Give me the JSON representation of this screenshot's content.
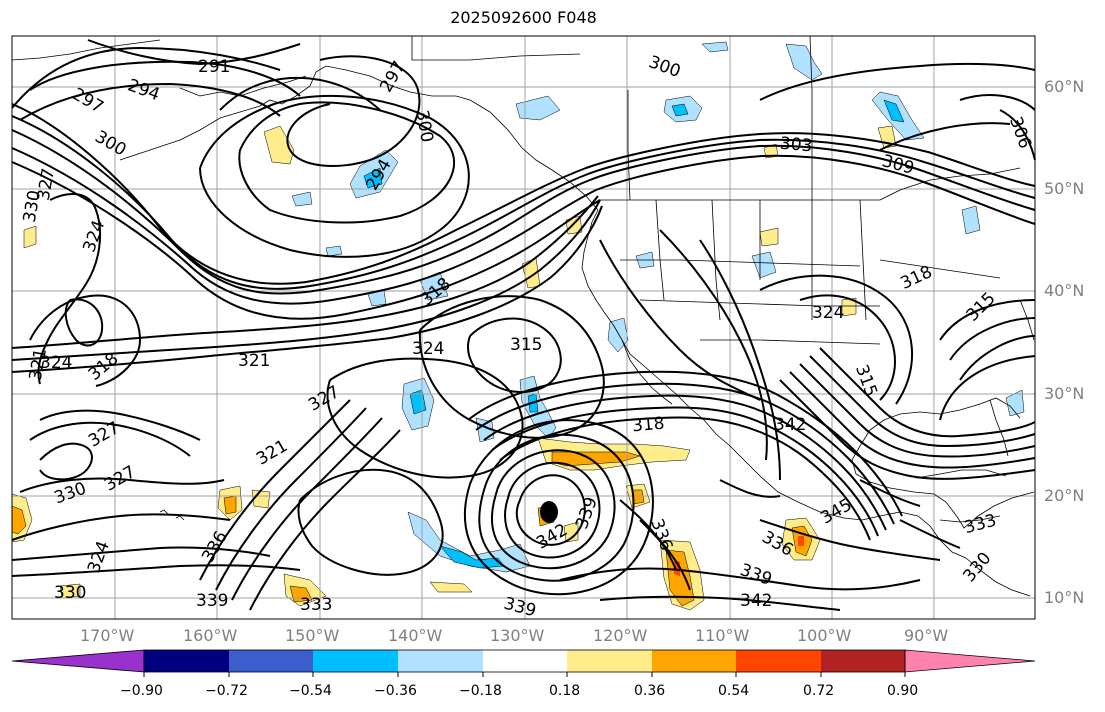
{
  "title": "2025092600 F048",
  "longitude_labels": [
    "170°W",
    "160°W",
    "150°W",
    "140°W",
    "130°W",
    "120°W",
    "110°W",
    "100°W",
    "90°W"
  ],
  "latitude_labels": [
    "60°N",
    "50°N",
    "40°N",
    "30°N",
    "20°N",
    "10°N"
  ],
  "colorbar": {
    "tick_labels": [
      "−0.90",
      "−0.72",
      "−0.54",
      "−0.36",
      "−0.18",
      "0.18",
      "0.36",
      "0.54",
      "0.72",
      "0.90"
    ],
    "colors": [
      "#9932cc",
      "#000080",
      "#3a5fcd",
      "#00bfff",
      "#b0e2ff",
      "#ffffff",
      "#ffec8b",
      "#ffa500",
      "#ff4500",
      "#b22222",
      "#ff82ab"
    ],
    "under_color": "#9932cc",
    "over_color": "#ff82ab"
  },
  "contour_labels": [
    "291",
    "294",
    "297",
    "297",
    "300",
    "300",
    "300",
    "303",
    "309",
    "306",
    "294",
    "330",
    "327",
    "324",
    "321",
    "324",
    "318",
    "318",
    "324",
    "315",
    "321",
    "327",
    "321",
    "327",
    "327",
    "330",
    "324",
    "330",
    "336",
    "339",
    "333",
    "318",
    "342",
    "339",
    "336",
    "339",
    "342",
    "336",
    "345",
    "342",
    "333",
    "330",
    "315",
    "324",
    "318",
    "315",
    "339"
  ],
  "colors": {
    "coastline": "#000000",
    "contour": "#000000",
    "grid": "#a0a0a0",
    "label": "#808080",
    "light_blue": "#b0e2ff",
    "mid_blue": "#00bfff",
    "yellow": "#ffec8b",
    "orange": "#ffa500",
    "red": "#ff4500"
  }
}
